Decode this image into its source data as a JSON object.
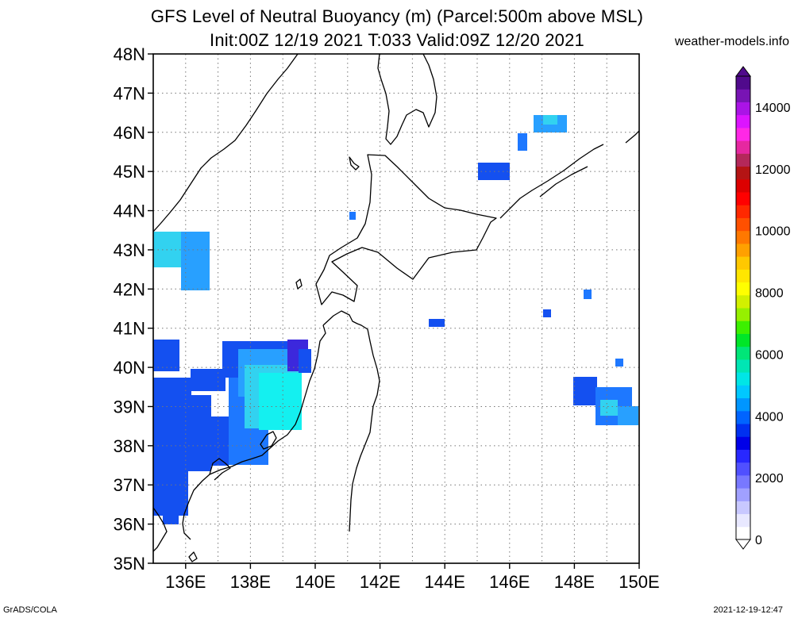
{
  "title_line1": "GFS Level of Neutral Buoyancy (m) (Parcel:500m above MSL)",
  "title_line2": "Init:00Z 12/19 2021 T:033 Valid:09Z 12/20 2021",
  "site": "weather-models.info",
  "footer_left": "GrADS/COLA",
  "footer_right": "2021-12-19-12:47",
  "lat_labels": [
    "48N",
    "47N",
    "46N",
    "45N",
    "44N",
    "43N",
    "42N",
    "41N",
    "40N",
    "39N",
    "38N",
    "37N",
    "36N",
    "35N"
  ],
  "lon_labels": [
    "136E",
    "138E",
    "140E",
    "142E",
    "144E",
    "146E",
    "148E",
    "150E"
  ],
  "colorbar": {
    "labels": [
      "0",
      "2000",
      "4000",
      "6000",
      "8000",
      "10000",
      "12000",
      "14000"
    ],
    "colors": [
      "#ffffff",
      "#e8e8ff",
      "#c8c8ff",
      "#a0a0ff",
      "#7878ff",
      "#5050ff",
      "#2828ff",
      "#0000e8",
      "#0030f0",
      "#0064ff",
      "#0096ff",
      "#00c8ff",
      "#00e6e6",
      "#00e6b4",
      "#00e678",
      "#00e628",
      "#3cf000",
      "#96f000",
      "#d2f000",
      "#ffff00",
      "#ffe600",
      "#ffc800",
      "#ffa000",
      "#ff7800",
      "#ff5000",
      "#ff2800",
      "#ff0000",
      "#dc0000",
      "#b41414",
      "#b4285a",
      "#e628a0",
      "#ff28e6",
      "#dc14ff",
      "#aa14e6",
      "#7814b4",
      "#500a8c"
    ]
  },
  "map": {
    "extent": {
      "lon_min": 135,
      "lon_max": 150,
      "lat_min": 35,
      "lat_max": 48
    },
    "colors": {
      "deep_blue": "#1450f0",
      "mid_blue": "#1e78ff",
      "light_blue": "#28a0ff",
      "cyan": "#32d2f0",
      "aqua": "#14f0f0",
      "violet": "#3c28dc"
    }
  }
}
